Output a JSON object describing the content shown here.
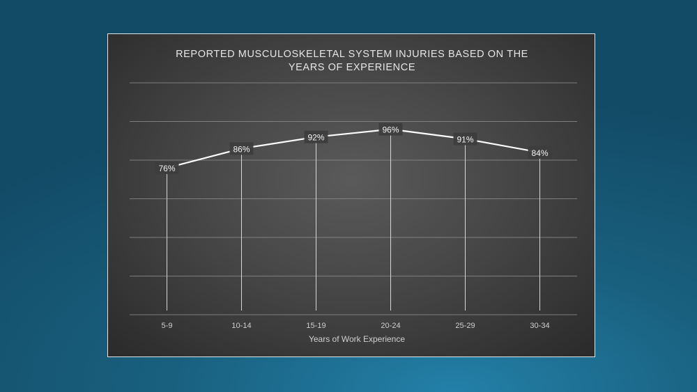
{
  "chart_data": {
    "type": "line",
    "title_lines": [
      "REPORTED MUSCULOSKELETAL SYSTEM INJURIES BASED ON THE",
      "YEARS OF EXPERIENCE"
    ],
    "xlabel": "Years of Work Experience",
    "ylabel": "",
    "categories": [
      "5-9",
      "10-14",
      "15-19",
      "20-24",
      "25-29",
      "30-34"
    ],
    "values": [
      76,
      86,
      92,
      96,
      91,
      84
    ],
    "data_labels": [
      "76%",
      "86%",
      "92%",
      "96%",
      "91%",
      "84%"
    ],
    "ylim": [
      0,
      120
    ],
    "grid": true,
    "drop_lines": true,
    "legend": "none"
  },
  "colors": {
    "line": "#ffffff",
    "grid": "#8a8a8a",
    "drop_line": "#d8d8d8",
    "label_bg": "#3d3d3d"
  }
}
